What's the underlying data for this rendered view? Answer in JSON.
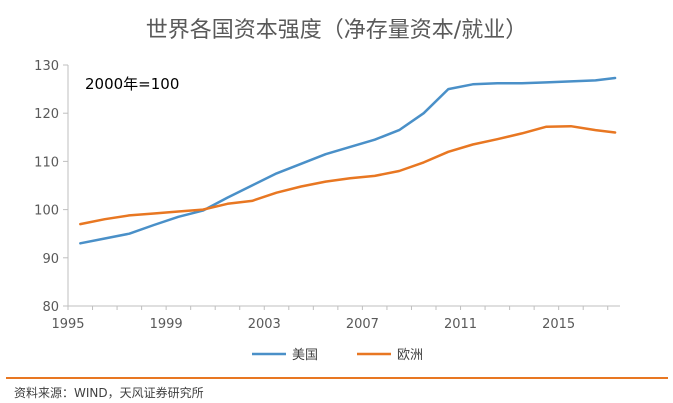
{
  "title": "世界各国资本强度（净存量资本/就业）",
  "source": "资料来源：WIND，天风证券研究所",
  "colors": {
    "us": "#4A90C8",
    "europe": "#E87722",
    "axis": "#BFBFBF",
    "source_rule": "#E87722"
  },
  "chart_data": {
    "type": "line",
    "annotation": "2000年=100",
    "xlim": [
      1995,
      2017.5
    ],
    "ylim": [
      80,
      130
    ],
    "x_ticks": [
      1995,
      1999,
      2003,
      2007,
      2011,
      2015
    ],
    "y_ticks": [
      80,
      90,
      100,
      110,
      120,
      130
    ],
    "grid": false,
    "legend": "bottom-center",
    "series": [
      {
        "name": "美国",
        "color": "#4A90C8",
        "points": [
          [
            1995.5,
            93.0
          ],
          [
            1996.5,
            94.0
          ],
          [
            1997.5,
            95.0
          ],
          [
            1998.5,
            96.8
          ],
          [
            1999.5,
            98.5
          ],
          [
            2000.5,
            99.8
          ],
          [
            2001.5,
            102.5
          ],
          [
            2002.5,
            105.0
          ],
          [
            2003.5,
            107.5
          ],
          [
            2004.5,
            109.5
          ],
          [
            2005.5,
            111.5
          ],
          [
            2006.5,
            113.0
          ],
          [
            2007.5,
            114.5
          ],
          [
            2008.5,
            116.5
          ],
          [
            2009.5,
            120.0
          ],
          [
            2010.5,
            125.0
          ],
          [
            2011.5,
            126.0
          ],
          [
            2012.5,
            126.2
          ],
          [
            2013.5,
            126.2
          ],
          [
            2014.5,
            126.4
          ],
          [
            2015.5,
            126.6
          ],
          [
            2016.5,
            126.8
          ],
          [
            2017.3,
            127.3
          ]
        ]
      },
      {
        "name": "欧洲",
        "color": "#E87722",
        "points": [
          [
            1995.5,
            97.0
          ],
          [
            1996.5,
            98.0
          ],
          [
            1997.5,
            98.8
          ],
          [
            1998.5,
            99.2
          ],
          [
            1999.5,
            99.6
          ],
          [
            2000.5,
            100.0
          ],
          [
            2001.5,
            101.2
          ],
          [
            2002.5,
            101.8
          ],
          [
            2003.5,
            103.5
          ],
          [
            2004.5,
            104.8
          ],
          [
            2005.5,
            105.8
          ],
          [
            2006.5,
            106.5
          ],
          [
            2007.5,
            107.0
          ],
          [
            2008.5,
            108.0
          ],
          [
            2009.5,
            109.8
          ],
          [
            2010.5,
            112.0
          ],
          [
            2011.5,
            113.5
          ],
          [
            2012.5,
            114.6
          ],
          [
            2013.5,
            115.8
          ],
          [
            2014.5,
            117.2
          ],
          [
            2015.5,
            117.3
          ],
          [
            2016.5,
            116.5
          ],
          [
            2017.3,
            116.0
          ]
        ]
      }
    ]
  }
}
